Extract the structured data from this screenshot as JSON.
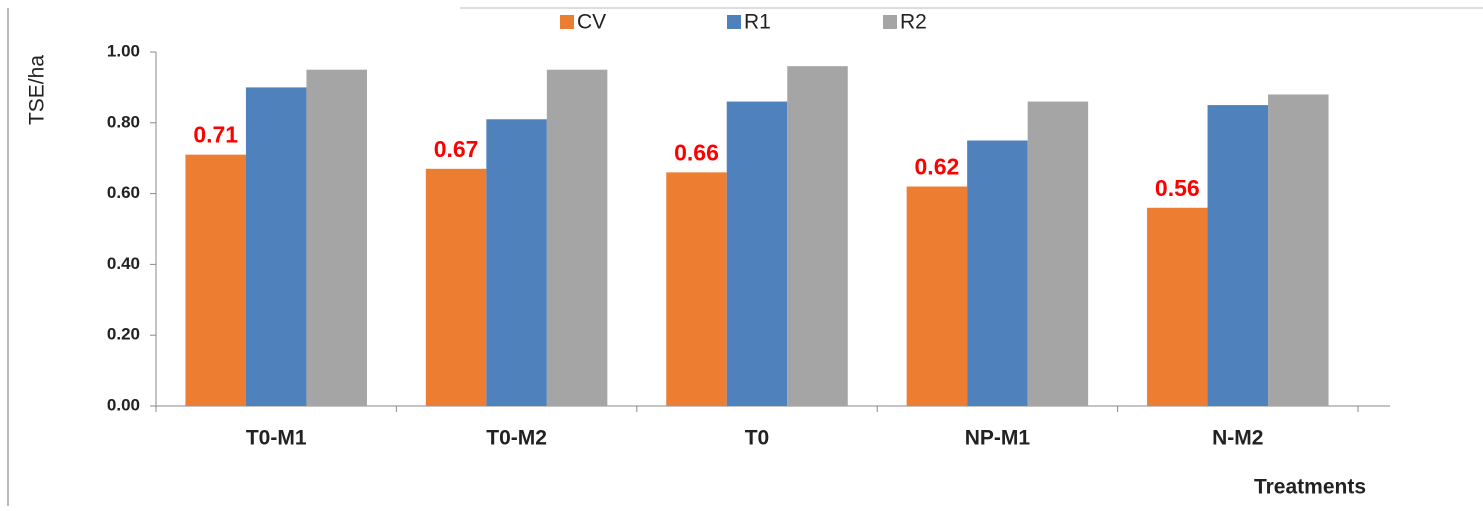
{
  "chart_data": {
    "type": "bar",
    "y_label": "TSE/ha",
    "x_label": "Treatments",
    "categories": [
      "T0-M1",
      "T0-M2",
      "T0",
      "NP-M1",
      "N-M2"
    ],
    "series": [
      {
        "name": "CV",
        "color": "#ed7d31",
        "values": [
          0.71,
          0.67,
          0.66,
          0.62,
          0.56
        ],
        "data_labels": true,
        "label_color": "#ff0000"
      },
      {
        "name": "R1",
        "color": "#4f81bd",
        "values": [
          0.9,
          0.81,
          0.86,
          0.75,
          0.85
        ]
      },
      {
        "name": "R2",
        "color": "#a5a5a5",
        "values": [
          0.95,
          0.95,
          0.96,
          0.86,
          0.88
        ]
      }
    ],
    "ylim": [
      0,
      1
    ],
    "yticks": [
      {
        "value": 0,
        "label": "0.00"
      },
      {
        "value": 0.2,
        "label": "0.20"
      },
      {
        "value": 0.4,
        "label": "0.40"
      },
      {
        "value": 0.6,
        "label": "0.60"
      },
      {
        "value": 0.8,
        "label": "0.80"
      },
      {
        "value": 1,
        "label": "1.00"
      }
    ],
    "grid": false,
    "legend": "top"
  }
}
